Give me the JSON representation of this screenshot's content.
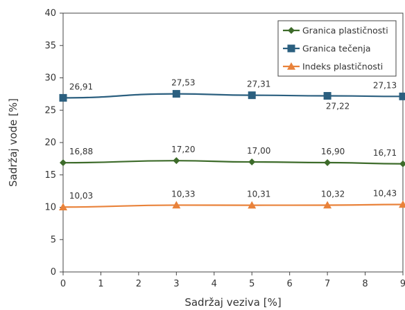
{
  "chart_data": {
    "type": "line",
    "title": "",
    "xlabel": "Sadržaj veziva [%]",
    "ylabel": "Sadržaj vode [%]",
    "x": [
      0,
      3,
      5,
      7,
      9
    ],
    "xlim": [
      0,
      9
    ],
    "ylim": [
      0,
      40
    ],
    "xticks": [
      "0",
      "1",
      "2",
      "3",
      "4",
      "5",
      "6",
      "7",
      "8",
      "9"
    ],
    "yticks": [
      "0",
      "5",
      "10",
      "15",
      "20",
      "25",
      "30",
      "35",
      "40"
    ],
    "grid": false,
    "legend_position": "top-right",
    "series": [
      {
        "name": "Granica plastičnosti",
        "color": "#3d6b2a",
        "marker": "diamond",
        "values": [
          16.88,
          17.2,
          17.0,
          16.9,
          16.71
        ],
        "labels": [
          "16,88",
          "17,20",
          "17,00",
          "16,90",
          "16,71"
        ]
      },
      {
        "name": "Granica tečenja",
        "color": "#2b5f7f",
        "marker": "square",
        "values": [
          26.91,
          27.53,
          27.31,
          27.22,
          27.13
        ],
        "labels": [
          "26,91",
          "27,53",
          "27,31",
          "27,22",
          "27,13"
        ]
      },
      {
        "name": "Indeks plastičnosti",
        "color": "#e9823a",
        "marker": "triangle",
        "values": [
          10.03,
          10.33,
          10.31,
          10.32,
          10.43
        ],
        "labels": [
          "10,03",
          "10,33",
          "10,31",
          "10,32",
          "10,43"
        ]
      }
    ]
  }
}
